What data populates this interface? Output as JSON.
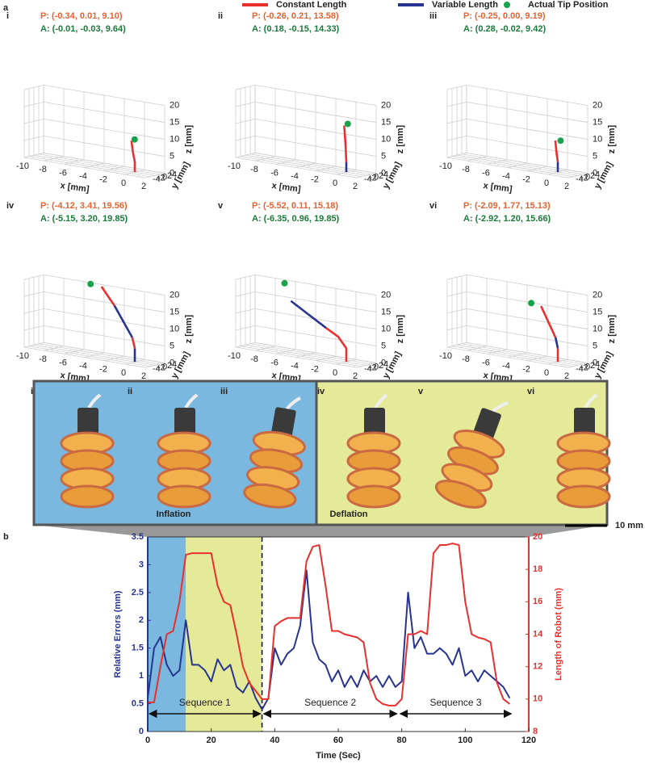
{
  "figure_labels": {
    "a": "a",
    "b": "b"
  },
  "legend": [
    {
      "label": "Constant Length",
      "color": "#e8312f"
    },
    {
      "label": "Variable Length",
      "color": "#28348f"
    },
    {
      "label": "Actual Tip Position",
      "color": "#17a34a"
    }
  ],
  "axes3d": {
    "xlabel": "x [mm]",
    "ylabel": "y [mm]",
    "zlabel": "z [mm]",
    "xlim": [
      -10,
      2
    ],
    "ylim": [
      -4,
      4
    ],
    "zlim": [
      0,
      20
    ],
    "xticks": [
      -10,
      -8,
      -6,
      -4,
      -2,
      0,
      2
    ],
    "yticks": [
      4,
      2,
      0,
      -2,
      -4
    ],
    "zticks": [
      0,
      5,
      10,
      15,
      20
    ]
  },
  "panels": [
    {
      "label": "i",
      "predicted": {
        "value": [
          -0.34,
          0.01,
          9.1
        ],
        "label": "P: (-0.34, 0.01, 9.10)"
      },
      "actual": {
        "value": [
          -0.01,
          -0.03,
          9.64
        ],
        "label": "A: (-0.01, -0.03, 9.64)"
      },
      "segments": [
        {
          "color": "#e8312f",
          "points": [
            [
              0,
              0,
              0
            ],
            [
              0,
              0,
              3
            ],
            [
              -0.2,
              0,
              6
            ]
          ]
        }
      ]
    },
    {
      "label": "ii",
      "predicted": {
        "value": [
          -0.26,
          0.21,
          13.58
        ],
        "label": "P: (-0.26, 0.21, 13.58)"
      },
      "actual": {
        "value": [
          0.18,
          -0.15,
          14.33
        ],
        "label": "A: (0.18, -0.15, 14.33)"
      },
      "segments": [
        {
          "color": "#28348f",
          "points": [
            [
              0,
              0,
              0
            ],
            [
              0,
              0,
              3
            ]
          ]
        },
        {
          "color": "#e8312f",
          "points": [
            [
              0,
              0,
              3
            ],
            [
              -0.1,
              0.1,
              8
            ]
          ]
        }
      ]
    },
    {
      "label": "iii",
      "predicted": {
        "value": [
          -0.25,
          0.0,
          9.19
        ],
        "label": "P: (-0.25, 0.00, 9.19)"
      },
      "actual": {
        "value": [
          0.28,
          -0.02,
          9.42
        ],
        "label": "A: (0.28, -0.02, 9.42)"
      },
      "segments": [
        {
          "color": "#28348f",
          "points": [
            [
              0,
              0,
              0
            ],
            [
              0,
              0,
              3
            ]
          ]
        },
        {
          "color": "#e8312f",
          "points": [
            [
              0,
              0,
              3
            ],
            [
              -0.1,
              0,
              5
            ]
          ]
        }
      ]
    },
    {
      "label": "iv",
      "predicted": {
        "value": [
          -4.12,
          3.41,
          19.56
        ],
        "label": "P: (-4.12, 3.41, 19.56)"
      },
      "actual": {
        "value": [
          -5.15,
          3.2,
          19.85
        ],
        "label": "A: (-5.15, 3.20, 19.85)"
      },
      "segments": [
        {
          "color": "#28348f",
          "points": [
            [
              0,
              0,
              0
            ],
            [
              0,
              0,
              4
            ]
          ]
        },
        {
          "color": "#e8312f",
          "points": [
            [
              0,
              0,
              4
            ],
            [
              -0.3,
              0.2,
              7
            ]
          ]
        },
        {
          "color": "#28348f",
          "points": [
            [
              -0.3,
              0.2,
              7
            ],
            [
              -2.5,
              2,
              15
            ]
          ]
        },
        {
          "color": "#e8312f",
          "points": [
            [
              -2.5,
              2,
              15
            ]
          ]
        }
      ]
    },
    {
      "label": "v",
      "predicted": {
        "value": [
          -5.52,
          0.11,
          15.18
        ],
        "label": "P: (-5.52, 0.11, 15.18)"
      },
      "actual": {
        "value": [
          -6.35,
          0.96,
          19.85
        ],
        "label": "A: (-6.35, 0.96, 19.85)"
      },
      "segments": [
        {
          "color": "#e8312f",
          "points": [
            [
              0,
              0,
              0
            ],
            [
              0,
              0,
              4
            ],
            [
              -0.8,
              0,
              7
            ],
            [
              -2,
              0,
              9
            ]
          ]
        },
        {
          "color": "#28348f",
          "points": [
            [
              -2,
              0,
              9
            ]
          ]
        }
      ]
    },
    {
      "label": "vi",
      "predicted": {
        "value": [
          -2.09,
          1.77,
          15.13
        ],
        "label": "P: (-2.09, 1.77, 15.13)"
      },
      "actual": {
        "value": [
          -2.92,
          1.2,
          15.66
        ],
        "label": "A: (-2.92, 1.20, 15.66)"
      },
      "segments": [
        {
          "color": "#e8312f",
          "points": [
            [
              0,
              0,
              0
            ],
            [
              0,
              0,
              4
            ]
          ]
        },
        {
          "color": "#28348f",
          "points": [
            [
              0,
              0,
              4
            ],
            [
              -0.3,
              0.3,
              7
            ]
          ]
        },
        {
          "color": "#e8312f",
          "points": [
            [
              -0.3,
              0.3,
              7
            ]
          ]
        }
      ]
    }
  ],
  "photos": {
    "inflation": {
      "label": "Inflation",
      "items": [
        "i",
        "ii",
        "iii"
      ],
      "color": "#7ab8e0"
    },
    "deflation": {
      "label": "Deflation",
      "items": [
        "iv",
        "v",
        "vi"
      ],
      "color": "#e4ea98"
    },
    "scale_bar": "10 mm"
  },
  "chart_data": {
    "type": "line",
    "xlabel": "Time (Sec)",
    "ylabel": "Relative Errors (mm)",
    "y2label": "Length of Robot (mm)",
    "x": [
      0,
      2,
      4,
      6,
      8,
      10,
      12,
      14,
      16,
      18,
      20,
      22,
      24,
      26,
      28,
      30,
      32,
      34,
      36,
      38,
      40,
      42,
      44,
      46,
      48,
      50,
      52,
      54,
      56,
      58,
      60,
      62,
      64,
      66,
      68,
      70,
      72,
      74,
      76,
      78,
      80,
      82,
      84,
      86,
      88,
      90,
      92,
      94,
      96,
      98,
      100,
      102,
      104,
      106,
      108,
      110,
      112,
      114
    ],
    "xlim": [
      0,
      120
    ],
    "xticks": [
      0,
      20,
      40,
      60,
      80,
      100,
      120
    ],
    "ylim": [
      0,
      3.5
    ],
    "yticks": [
      0,
      0.5,
      1,
      1.5,
      2,
      2.5,
      3,
      3.5
    ],
    "y2lim": [
      8,
      20
    ],
    "y2ticks": [
      8,
      10,
      12,
      14,
      16,
      18,
      20
    ],
    "series": [
      {
        "color": "#28348f",
        "values": [
          0.6,
          1.5,
          1.7,
          1.2,
          1.0,
          1.1,
          2.0,
          1.2,
          1.2,
          1.1,
          0.9,
          1.3,
          1.1,
          1.2,
          0.8,
          0.7,
          0.9,
          0.6,
          0.4,
          0.6,
          1.5,
          1.2,
          1.4,
          1.5,
          1.9,
          2.9,
          1.6,
          1.3,
          1.2,
          0.9,
          1.1,
          0.8,
          1.0,
          0.8,
          1.1,
          0.9,
          1.0,
          0.8,
          1.0,
          0.8,
          0.9,
          2.5,
          1.5,
          1.7,
          1.4,
          1.4,
          1.5,
          1.4,
          1.2,
          1.5,
          1.0,
          1.1,
          0.9,
          1.1,
          1.0,
          0.9,
          0.8,
          0.6
        ]
      },
      {
        "color": "#e8312f",
        "axis": "y2",
        "values": [
          9.8,
          9.8,
          12,
          14,
          14.2,
          16,
          18.9,
          19,
          19,
          19,
          19,
          17,
          16,
          15.8,
          14,
          12,
          11,
          10.5,
          10,
          10,
          14.5,
          14.8,
          15,
          15,
          15,
          18.5,
          19.4,
          19.5,
          17,
          14.2,
          14.2,
          14,
          13.9,
          13.8,
          13.5,
          11,
          10,
          9.7,
          9.6,
          9.6,
          10,
          14,
          14,
          14.2,
          14,
          19,
          19.5,
          19.5,
          19.6,
          19.5,
          16,
          14,
          13.8,
          13.7,
          13.5,
          11,
          10,
          9.7
        ]
      }
    ],
    "regions": [
      {
        "x0": 0,
        "x1": 12,
        "color": "#7ab8e0"
      },
      {
        "x0": 12,
        "x1": 36,
        "color": "#e4ea98"
      }
    ],
    "divider": 36,
    "sequences": [
      {
        "label": "Sequence 1",
        "x0": 0,
        "x1": 36
      },
      {
        "label": "Sequence 2",
        "x0": 36,
        "x1": 79
      },
      {
        "label": "Sequence 3",
        "x0": 79,
        "x1": 115
      }
    ]
  }
}
